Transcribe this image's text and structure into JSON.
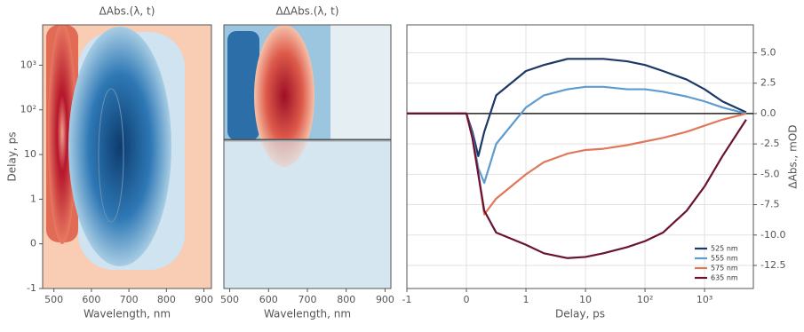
{
  "chart_data": [
    {
      "type": "heatmap",
      "title": "ΔAbs.(λ, t)",
      "xlabel": "Wavelength, nm",
      "ylabel": "Delay, ps",
      "xlim": [
        470,
        920
      ],
      "xticks": [
        500,
        600,
        700,
        800,
        900
      ],
      "ylim": [
        -1,
        8000
      ],
      "yscale": "symlog",
      "yticks": [
        -1,
        0,
        1,
        10,
        {
          "value": 100,
          "label": "10²"
        },
        {
          "value": 1000,
          "label": "10³"
        }
      ]
    },
    {
      "type": "heatmap",
      "title": "ΔΔAbs.(λ, t)",
      "xlabel": "Wavelength, nm",
      "xlim": [
        485,
        915
      ],
      "xticks": [
        500,
        600,
        700,
        800,
        900
      ],
      "ylim": [
        -1,
        8000
      ],
      "yscale": "symlog"
    },
    {
      "type": "line",
      "xlabel": "Delay, ps",
      "ylabel": "ΔAbs., mOD",
      "xscale": "symlog",
      "yaxis": "right",
      "grid": true,
      "xlim": [
        -1,
        6600
      ],
      "xticks": [
        -1,
        0,
        1,
        10,
        {
          "value": 100,
          "label": "10²"
        },
        {
          "value": 1000,
          "label": "10³"
        }
      ],
      "ylim": [
        -14.4,
        7.3
      ],
      "yticks": [
        {
          "value": 5,
          "label": "5.0"
        },
        2.5,
        {
          "value": 0,
          "label": "0.0"
        },
        -2.5,
        {
          "value": -5,
          "label": "-5.0"
        },
        -7.5,
        {
          "value": -10,
          "label": "-10.0"
        },
        -12.5
      ],
      "legend": "lower right",
      "x": [
        -1,
        -0.5,
        0,
        0.1,
        0.2,
        0.3,
        0.5,
        1,
        2,
        5,
        10,
        20,
        50,
        100,
        200,
        500,
        1000,
        2000,
        5000
      ],
      "series": [
        {
          "name": "525 nm",
          "color": "#1d3866",
          "values": [
            0,
            0,
            0,
            -1.5,
            -3.5,
            -1.5,
            1.5,
            3.5,
            4.0,
            4.5,
            4.5,
            4.5,
            4.3,
            4.0,
            3.5,
            2.8,
            2.0,
            1.0,
            0.1
          ]
        },
        {
          "name": "555 nm",
          "color": "#5d9bd1",
          "values": [
            0,
            0,
            0,
            -1.8,
            -4.5,
            -5.7,
            -2.5,
            0.5,
            1.5,
            2.0,
            2.2,
            2.2,
            2.0,
            2.0,
            1.8,
            1.4,
            1.0,
            0.5,
            0
          ]
        },
        {
          "name": "575 nm",
          "color": "#e0785c",
          "values": [
            0,
            0,
            0,
            -2.0,
            -5.0,
            -8.3,
            -7.0,
            -5.0,
            -4.0,
            -3.3,
            -3.0,
            -2.9,
            -2.6,
            -2.3,
            -2.0,
            -1.5,
            -1.0,
            -0.5,
            0
          ]
        },
        {
          "name": "635 nm",
          "color": "#6a1232",
          "values": [
            0,
            0,
            0,
            -2.0,
            -5.0,
            -8.0,
            -9.8,
            -10.8,
            -11.5,
            -11.9,
            -11.8,
            -11.5,
            -11.0,
            -10.5,
            -9.8,
            -8.0,
            -6.0,
            -3.5,
            -0.5
          ]
        }
      ]
    }
  ]
}
